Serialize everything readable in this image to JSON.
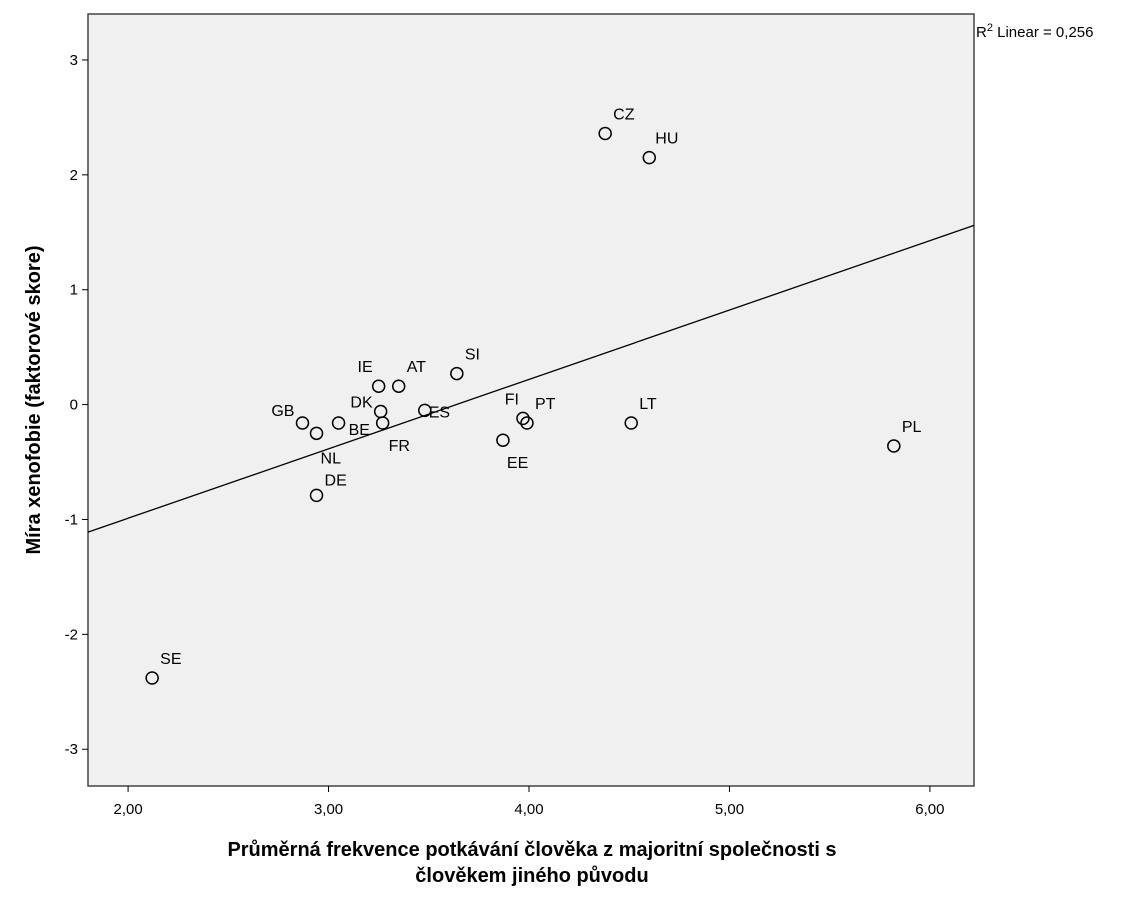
{
  "chart_data": {
    "type": "scatter",
    "title": "",
    "xlabel_lines": [
      "Průměrná frekvence potkávání člověka z majoritní společnosti s",
      "člověkem jiného původu"
    ],
    "ylabel": "Míra xenofobie (faktorové skore)",
    "xlim": [
      1.8,
      6.22
    ],
    "ylim": [
      -3.32,
      3.4
    ],
    "xticks": [
      2,
      3,
      4,
      5,
      6
    ],
    "xtick_labels": [
      "2,00",
      "3,00",
      "4,00",
      "5,00",
      "6,00"
    ],
    "yticks": [
      3,
      2,
      1,
      0,
      -1,
      -2,
      -3
    ],
    "ytick_labels": [
      "3",
      "2",
      "1",
      "0",
      "-1",
      "-2",
      "-3"
    ],
    "grid": false,
    "colors": {
      "plot_background": "#f0f0f0",
      "marker": "#000000",
      "line": "#000000"
    },
    "points": [
      {
        "label": "CZ",
        "x": 4.38,
        "y": 2.36
      },
      {
        "label": "HU",
        "x": 4.6,
        "y": 2.15
      },
      {
        "label": "SI",
        "x": 3.64,
        "y": 0.27
      },
      {
        "label": "AT",
        "x": 3.35,
        "y": 0.16
      },
      {
        "label": "IE",
        "x": 3.25,
        "y": 0.16
      },
      {
        "label": "DK",
        "x": 3.26,
        "y": -0.06
      },
      {
        "label": "ES",
        "x": 3.48,
        "y": -0.05
      },
      {
        "label": "GB",
        "x": 2.87,
        "y": -0.16
      },
      {
        "label": "BE",
        "x": 3.05,
        "y": -0.16
      },
      {
        "label": "FR",
        "x": 3.27,
        "y": -0.16
      },
      {
        "label": "NL",
        "x": 2.94,
        "y": -0.25
      },
      {
        "label": "FI",
        "x": 3.97,
        "y": -0.12
      },
      {
        "label": "PT",
        "x": 3.99,
        "y": -0.16
      },
      {
        "label": "EE",
        "x": 3.87,
        "y": -0.31
      },
      {
        "label": "LT",
        "x": 4.51,
        "y": -0.16
      },
      {
        "label": "PL",
        "x": 5.82,
        "y": -0.36
      },
      {
        "label": "DE",
        "x": 2.94,
        "y": -0.79
      },
      {
        "label": "SE",
        "x": 2.12,
        "y": -2.38
      }
    ],
    "fit_line": {
      "type": "linear",
      "x": [
        1.8,
        6.22
      ],
      "y": [
        -1.11,
        1.56
      ]
    },
    "r2_label": {
      "prefix": "R",
      "sup": "2",
      "text": " Linear = 0,256"
    }
  }
}
